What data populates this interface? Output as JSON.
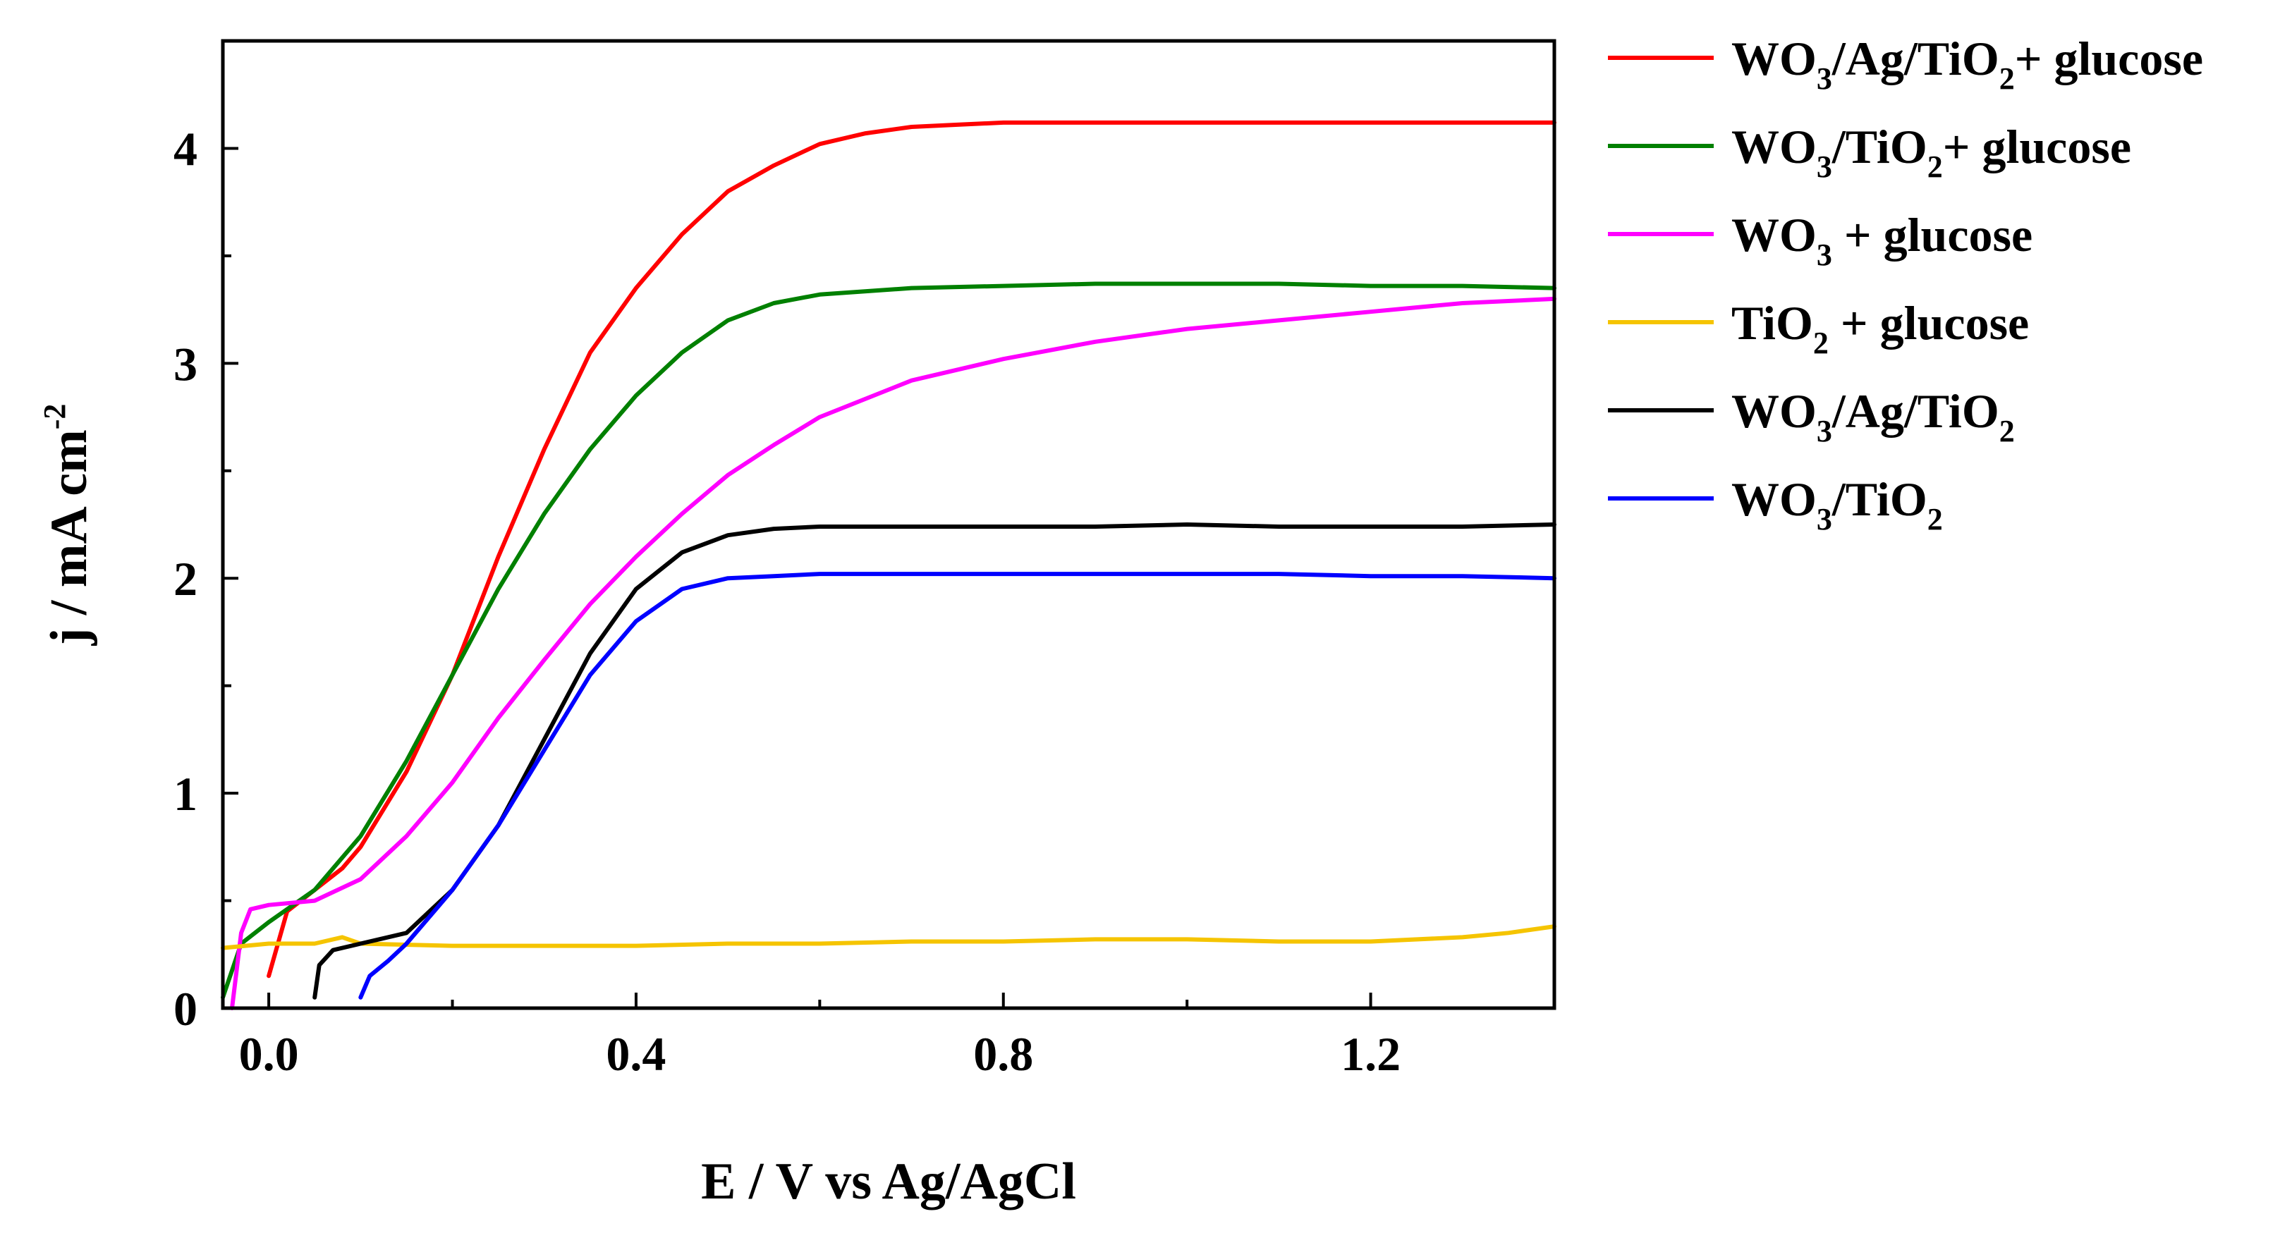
{
  "chart_data": {
    "type": "line",
    "xlabel": "E / V vs Ag/AgCl",
    "ylabel": {
      "main": "j / mA cm",
      "sup": "-2"
    },
    "xlim": [
      -0.05,
      1.4
    ],
    "ylim": [
      0,
      4.5
    ],
    "xticks": [
      0.0,
      0.4,
      0.8,
      1.2
    ],
    "xtick_labels": [
      "0.0",
      "0.4",
      "0.8",
      "1.2"
    ],
    "yticks": [
      0,
      1,
      2,
      3,
      4
    ],
    "ytick_labels": [
      "0",
      "1",
      "2",
      "3",
      "4"
    ],
    "legend_position": "top-right-outside",
    "series": [
      {
        "id": "wo3-ag-tio2-glucose",
        "color": "#ff0000",
        "label": [
          {
            "t": "WO"
          },
          {
            "t": "3",
            "s": "sub"
          },
          {
            "t": "/Ag/TiO"
          },
          {
            "t": "2",
            "s": "sub"
          },
          {
            "t": "+ glucose"
          }
        ],
        "x": [
          0.0,
          0.02,
          0.05,
          0.08,
          0.1,
          0.15,
          0.2,
          0.25,
          0.3,
          0.35,
          0.4,
          0.45,
          0.5,
          0.55,
          0.6,
          0.65,
          0.7,
          0.75,
          0.8,
          0.9,
          1.0,
          1.1,
          1.2,
          1.3,
          1.4
        ],
        "y": [
          0.15,
          0.45,
          0.55,
          0.65,
          0.75,
          1.1,
          1.55,
          2.1,
          2.6,
          3.05,
          3.35,
          3.6,
          3.8,
          3.92,
          4.02,
          4.07,
          4.1,
          4.11,
          4.12,
          4.12,
          4.12,
          4.12,
          4.12,
          4.12,
          4.12
        ]
      },
      {
        "id": "wo3-tio2-glucose",
        "color": "#008000",
        "label": [
          {
            "t": "WO"
          },
          {
            "t": "3",
            "s": "sub"
          },
          {
            "t": "/TiO"
          },
          {
            "t": "2",
            "s": "sub"
          },
          {
            "t": "+ glucose"
          }
        ],
        "x": [
          -0.05,
          -0.03,
          0.0,
          0.05,
          0.1,
          0.15,
          0.2,
          0.25,
          0.3,
          0.35,
          0.4,
          0.45,
          0.5,
          0.55,
          0.6,
          0.7,
          0.8,
          0.9,
          1.0,
          1.1,
          1.2,
          1.3,
          1.4
        ],
        "y": [
          0.05,
          0.3,
          0.4,
          0.55,
          0.8,
          1.15,
          1.55,
          1.95,
          2.3,
          2.6,
          2.85,
          3.05,
          3.2,
          3.28,
          3.32,
          3.35,
          3.36,
          3.37,
          3.37,
          3.37,
          3.36,
          3.36,
          3.35
        ]
      },
      {
        "id": "wo3-glucose",
        "color": "#ff00ff",
        "label": [
          {
            "t": "WO"
          },
          {
            "t": "3",
            "s": "sub"
          },
          {
            "t": " + glucose"
          }
        ],
        "x": [
          -0.04,
          -0.03,
          -0.02,
          0.0,
          0.05,
          0.1,
          0.15,
          0.2,
          0.25,
          0.3,
          0.35,
          0.4,
          0.45,
          0.5,
          0.55,
          0.6,
          0.7,
          0.8,
          0.9,
          1.0,
          1.1,
          1.2,
          1.3,
          1.4
        ],
        "y": [
          0.0,
          0.35,
          0.46,
          0.48,
          0.5,
          0.6,
          0.8,
          1.05,
          1.35,
          1.62,
          1.88,
          2.1,
          2.3,
          2.48,
          2.62,
          2.75,
          2.92,
          3.02,
          3.1,
          3.16,
          3.2,
          3.24,
          3.28,
          3.3
        ]
      },
      {
        "id": "tio2-glucose",
        "color": "#f5c400",
        "label": [
          {
            "t": "TiO"
          },
          {
            "t": "2",
            "s": "sub"
          },
          {
            "t": " + glucose"
          }
        ],
        "x": [
          -0.05,
          0.0,
          0.05,
          0.08,
          0.1,
          0.2,
          0.3,
          0.4,
          0.5,
          0.6,
          0.7,
          0.8,
          0.9,
          1.0,
          1.1,
          1.2,
          1.3,
          1.35,
          1.4
        ],
        "y": [
          0.28,
          0.3,
          0.3,
          0.33,
          0.3,
          0.29,
          0.29,
          0.29,
          0.3,
          0.3,
          0.31,
          0.31,
          0.32,
          0.32,
          0.31,
          0.31,
          0.33,
          0.35,
          0.38
        ]
      },
      {
        "id": "wo3-ag-tio2",
        "color": "#000000",
        "label": [
          {
            "t": "WO"
          },
          {
            "t": "3",
            "s": "sub"
          },
          {
            "t": "/Ag/TiO"
          },
          {
            "t": "2",
            "s": "sub"
          }
        ],
        "x": [
          0.05,
          0.055,
          0.07,
          0.1,
          0.12,
          0.15,
          0.2,
          0.25,
          0.3,
          0.35,
          0.4,
          0.45,
          0.5,
          0.55,
          0.6,
          0.7,
          0.8,
          0.9,
          1.0,
          1.1,
          1.2,
          1.3,
          1.4
        ],
        "y": [
          0.05,
          0.2,
          0.27,
          0.3,
          0.32,
          0.35,
          0.55,
          0.85,
          1.25,
          1.65,
          1.95,
          2.12,
          2.2,
          2.23,
          2.24,
          2.24,
          2.24,
          2.24,
          2.25,
          2.24,
          2.24,
          2.24,
          2.25
        ]
      },
      {
        "id": "wo3-tio2",
        "color": "#0000ff",
        "label": [
          {
            "t": "WO"
          },
          {
            "t": "3",
            "s": "sub"
          },
          {
            "t": "/TiO"
          },
          {
            "t": "2",
            "s": "sub"
          }
        ],
        "x": [
          0.1,
          0.11,
          0.13,
          0.15,
          0.2,
          0.25,
          0.3,
          0.35,
          0.4,
          0.45,
          0.5,
          0.55,
          0.6,
          0.7,
          0.8,
          0.9,
          1.0,
          1.1,
          1.2,
          1.3,
          1.4
        ],
        "y": [
          0.05,
          0.15,
          0.22,
          0.3,
          0.55,
          0.85,
          1.2,
          1.55,
          1.8,
          1.95,
          2.0,
          2.01,
          2.02,
          2.02,
          2.02,
          2.02,
          2.02,
          2.02,
          2.01,
          2.01,
          2.0
        ]
      }
    ]
  }
}
